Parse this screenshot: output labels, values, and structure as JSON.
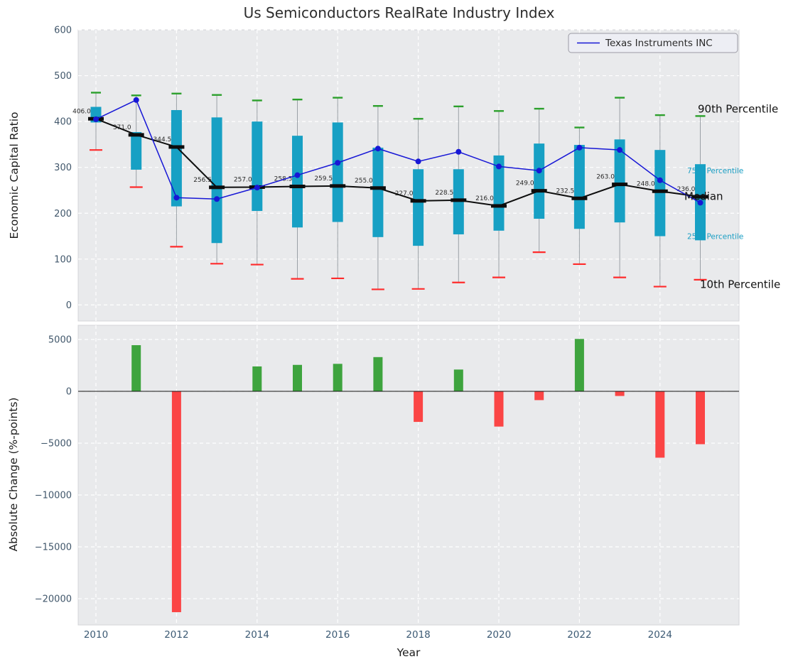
{
  "chart_data": [
    {
      "type": "boxplot",
      "title": "Us Semiconductors RealRate Industry Index",
      "ylabel": "Economic Capital Ratio",
      "ylim": [
        -35,
        600
      ],
      "yticks": [
        "0",
        "100",
        "200",
        "300",
        "400",
        "500",
        "600"
      ],
      "ytick_values": [
        0,
        100,
        200,
        300,
        400,
        500,
        600
      ],
      "grid": "dashed",
      "legend": {
        "label": "Texas Instruments INC",
        "position": "upper right"
      },
      "years": [
        2010,
        2011,
        2012,
        2013,
        2014,
        2015,
        2016,
        2017,
        2018,
        2019,
        2020,
        2021,
        2022,
        2023,
        2024,
        2025
      ],
      "series": {
        "median": [
          406.0,
          371.0,
          344.5,
          256.5,
          257.0,
          258.5,
          259.5,
          255.0,
          227.0,
          228.5,
          216.0,
          249.0,
          232.5,
          263.0,
          248.0,
          236.0
        ],
        "p75": [
          432,
          377,
          425,
          409,
          400,
          369,
          398,
          343,
          296,
          296,
          326,
          352,
          349,
          361,
          338,
          307
        ],
        "p25": [
          398,
          295,
          215,
          135,
          205,
          169,
          181,
          148,
          129,
          154,
          162,
          188,
          166,
          180,
          150,
          141
        ],
        "p90": [
          463,
          457,
          461,
          458,
          446,
          448,
          452,
          434,
          406,
          433,
          423,
          428,
          387,
          452,
          414,
          412
        ],
        "p10": [
          338,
          257,
          127,
          90,
          88,
          57,
          58,
          34,
          35,
          49,
          60,
          115,
          89,
          60,
          40,
          55
        ],
        "texas_instruments": [
          405,
          447,
          234,
          231,
          256,
          283,
          310,
          341,
          313,
          334,
          302,
          293,
          343,
          338,
          272,
          223
        ]
      },
      "median_labels": [
        "406.0",
        "371.0",
        "344.5",
        "256.5",
        "257.0",
        "258.5",
        "259.5",
        "255.0",
        "227.0",
        "228.5",
        "216.0",
        "249.0",
        "232.5",
        "263.0",
        "248.0",
        "236.0"
      ],
      "right_annotations": [
        {
          "label": "90th Percentile",
          "x": 982,
          "y_value": 427,
          "size": 15,
          "color": "#111111"
        },
        {
          "label": "75th Percentile",
          "x": 967,
          "y_value": 295,
          "size": 10.5,
          "color": "#1b9fc4"
        },
        {
          "label": "Median",
          "x": 963,
          "y_value": 237,
          "size": 15,
          "color": "#111111"
        },
        {
          "label": "25th Percentile",
          "x": 967,
          "y_value": 152,
          "size": 10.5,
          "color": "#1b9fc4"
        },
        {
          "label": "10th Percentile",
          "x": 985,
          "y_value": 45,
          "size": 15,
          "color": "#111111"
        }
      ],
      "colors": {
        "plot_bg": "#e9eaec",
        "grid": "#ffffff",
        "box": "#17a0c4",
        "median_line": "#0d0d0d",
        "ti_line": "#1717d6",
        "cap_90": "#2ca02c",
        "cap_10": "#ff2b2b",
        "whisker": "#9aa0a6",
        "tick_text": "#41576b"
      }
    },
    {
      "type": "bar",
      "ylabel": "Absolute Change (%-points)",
      "xlabel": "Year",
      "ylim": [
        -22500,
        6400
      ],
      "yticks": [
        "5000",
        "0",
        "−5000",
        "−10000",
        "−15000",
        "−20000"
      ],
      "ytick_values": [
        5000,
        0,
        -5000,
        -10000,
        -15000,
        -20000
      ],
      "years": [
        2010,
        2011,
        2012,
        2013,
        2014,
        2015,
        2016,
        2017,
        2018,
        2019,
        2020,
        2021,
        2022,
        2023,
        2024,
        2025
      ],
      "values": [
        null,
        4450,
        -21300,
        0,
        2400,
        2550,
        2650,
        3300,
        -2950,
        2100,
        -3400,
        -850,
        5050,
        -450,
        -6400,
        -5100
      ],
      "xticks": [
        "2010",
        "2012",
        "2014",
        "2016",
        "2018",
        "2020",
        "2022",
        "2024"
      ],
      "colors": {
        "plot_bg": "#e9eaec",
        "grid": "#ffffff",
        "positive": "#3ea43e",
        "negative": "#fb4545",
        "zero_line": "#111111",
        "tick_text": "#3c5a74"
      }
    }
  ]
}
